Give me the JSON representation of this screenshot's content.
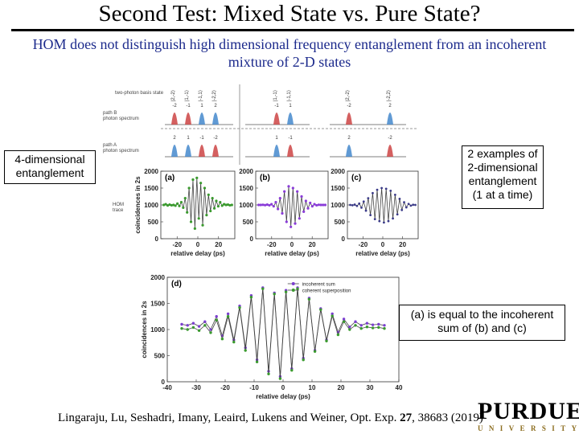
{
  "slide": {
    "title": "Second Test: Mixed State vs. Pure State?",
    "subtitle": "HOM does not distinguish high dimensional frequency entanglement from an incoherent mixture of 2-D states"
  },
  "callouts": {
    "left": "4-dimensional entanglement",
    "right": "2 examples of 2-dimensional entanglement (1 at a time)",
    "bottom": "(a) is equal to the incoherent sum of (b) and (c)"
  },
  "citation": {
    "authors": "Lingaraju, Lu, Seshadri, Imany, Leaird, Lukens and Weiner, Opt. Exp. ",
    "volume": "27",
    "pages": ", 38683 (2019)"
  },
  "logo": {
    "main": "PURDUE",
    "sub": "UNIVERSITY"
  },
  "figure": {
    "labels": {
      "basis_state": "two-photon basis state",
      "path_b": "path B",
      "path_b_sub": "photon spectrum",
      "path_a": "path A",
      "path_a_sub": "photon spectrum",
      "hom": "HOM",
      "hom_sub": "trace",
      "panel_a": "(a)",
      "panel_b": "(b)",
      "panel_c": "(c)",
      "panel_d": "(d)"
    },
    "kets": [
      "|2,-2⟩",
      "|1,-1⟩",
      "|-1,1⟩",
      "|-2,2⟩",
      "|1,-1⟩",
      "|-1,1⟩",
      "|2,-2⟩",
      "|-2,2⟩"
    ],
    "path_b_numbers": [
      "-2",
      "-1",
      "1",
      "2",
      "-1",
      "1",
      "-2",
      "2"
    ],
    "path_a_numbers": [
      "2",
      "1",
      "-1",
      "-2",
      "1",
      "-1",
      "2",
      "-2"
    ]
  },
  "chart_data": [
    {
      "type": "line",
      "panel": "(a)",
      "ylabel": "coincidences in 2s",
      "xlabel": "relative delay (ps)",
      "ylim": [
        0,
        2000
      ],
      "yticks": [
        "2000",
        "1500",
        "1000",
        "500",
        "0"
      ],
      "xticks": [
        "-20",
        "0",
        "20"
      ],
      "series": [
        {
          "values": [
            1000,
            1020,
            985,
            1010,
            990,
            1000,
            980,
            1040,
            970,
            1080,
            920,
            1200,
            780,
            1500,
            500,
            1750,
            300,
            1800,
            600,
            1650,
            400,
            1500,
            700,
            1300,
            820,
            1200,
            900,
            1120,
            960,
            1080,
            980,
            1020,
            1000,
            1010,
            990,
            1000
          ]
        }
      ],
      "color": "#3a9a2e"
    },
    {
      "type": "line",
      "panel": "(b)",
      "ylabel": "",
      "xlabel": "relative delay (ps)",
      "ylim": [
        0,
        2000
      ],
      "yticks": [
        "2000",
        "1500",
        "1000",
        "500",
        "0"
      ],
      "xticks": [
        "-20",
        "0",
        "20"
      ],
      "series": [
        {
          "values": [
            1000,
            1000,
            1005,
            995,
            1010,
            990,
            1020,
            960,
            1080,
            880,
            1200,
            750,
            1400,
            500,
            1550,
            350,
            1500,
            450,
            1400,
            600,
            1250,
            800,
            1120,
            900,
            1060,
            960,
            1020,
            990,
            1005,
            1000,
            1000,
            1000
          ]
        }
      ],
      "color": "#8a3cd8"
    },
    {
      "type": "line",
      "panel": "(c)",
      "ylabel": "",
      "xlabel": "relative delay (ps)",
      "ylim": [
        0,
        2000
      ],
      "yticks": [
        "2000",
        "1500",
        "1000",
        "500",
        "0"
      ],
      "xticks": [
        "-20",
        "0",
        "20"
      ],
      "series": [
        {
          "values": [
            1000,
            990,
            1010,
            970,
            1040,
            920,
            1100,
            830,
            1200,
            700,
            1350,
            580,
            1450,
            520,
            1500,
            480,
            1480,
            520,
            1420,
            600,
            1300,
            720,
            1180,
            850,
            1080,
            930,
            1030,
            980,
            1005,
            1000
          ]
        }
      ],
      "color": "#3a3a88"
    },
    {
      "type": "line",
      "panel": "(d)",
      "ylabel": "coincidences in 2s",
      "xlabel": "relative delay (ps)",
      "ylim": [
        0,
        2000
      ],
      "xlim": [
        -40,
        40
      ],
      "yticks": [
        "2000",
        "1500",
        "1000",
        "500",
        "0"
      ],
      "xticks": [
        "-40",
        "-30",
        "-20",
        "-10",
        "0",
        "10",
        "20",
        "30",
        "40"
      ],
      "legend": [
        "incoherent sum",
        "coherent superposition"
      ],
      "x": [
        -35,
        -33,
        -31,
        -29,
        -27,
        -25,
        -23,
        -21,
        -19,
        -17,
        -15,
        -13,
        -11,
        -9,
        -7,
        -5,
        -3,
        -1,
        1,
        3,
        5,
        7,
        9,
        11,
        13,
        15,
        17,
        19,
        21,
        23,
        25,
        27,
        29,
        31,
        33,
        35
      ],
      "series": [
        {
          "name": "incoherent sum",
          "values": [
            1100,
            1080,
            1120,
            1060,
            1150,
            1000,
            1250,
            880,
            1300,
            800,
            1450,
            650,
            1650,
            420,
            1800,
            200,
            1700,
            100,
            1750,
            250,
            1800,
            450,
            1600,
            600,
            1400,
            800,
            1300,
            950,
            1200,
            1050,
            1150,
            1080,
            1120,
            1090,
            1100,
            1080
          ],
          "color": "#7b3fcf"
        },
        {
          "name": "coherent superposition",
          "values": [
            1020,
            1000,
            1040,
            980,
            1080,
            940,
            1180,
            820,
            1250,
            760,
            1420,
            600,
            1620,
            380,
            1780,
            150,
            1680,
            60,
            1720,
            220,
            1780,
            420,
            1580,
            580,
            1380,
            780,
            1260,
            900,
            1150,
            1000,
            1080,
            1020,
            1050,
            1030,
            1040,
            1020
          ],
          "color": "#3a9a2e"
        }
      ]
    }
  ]
}
